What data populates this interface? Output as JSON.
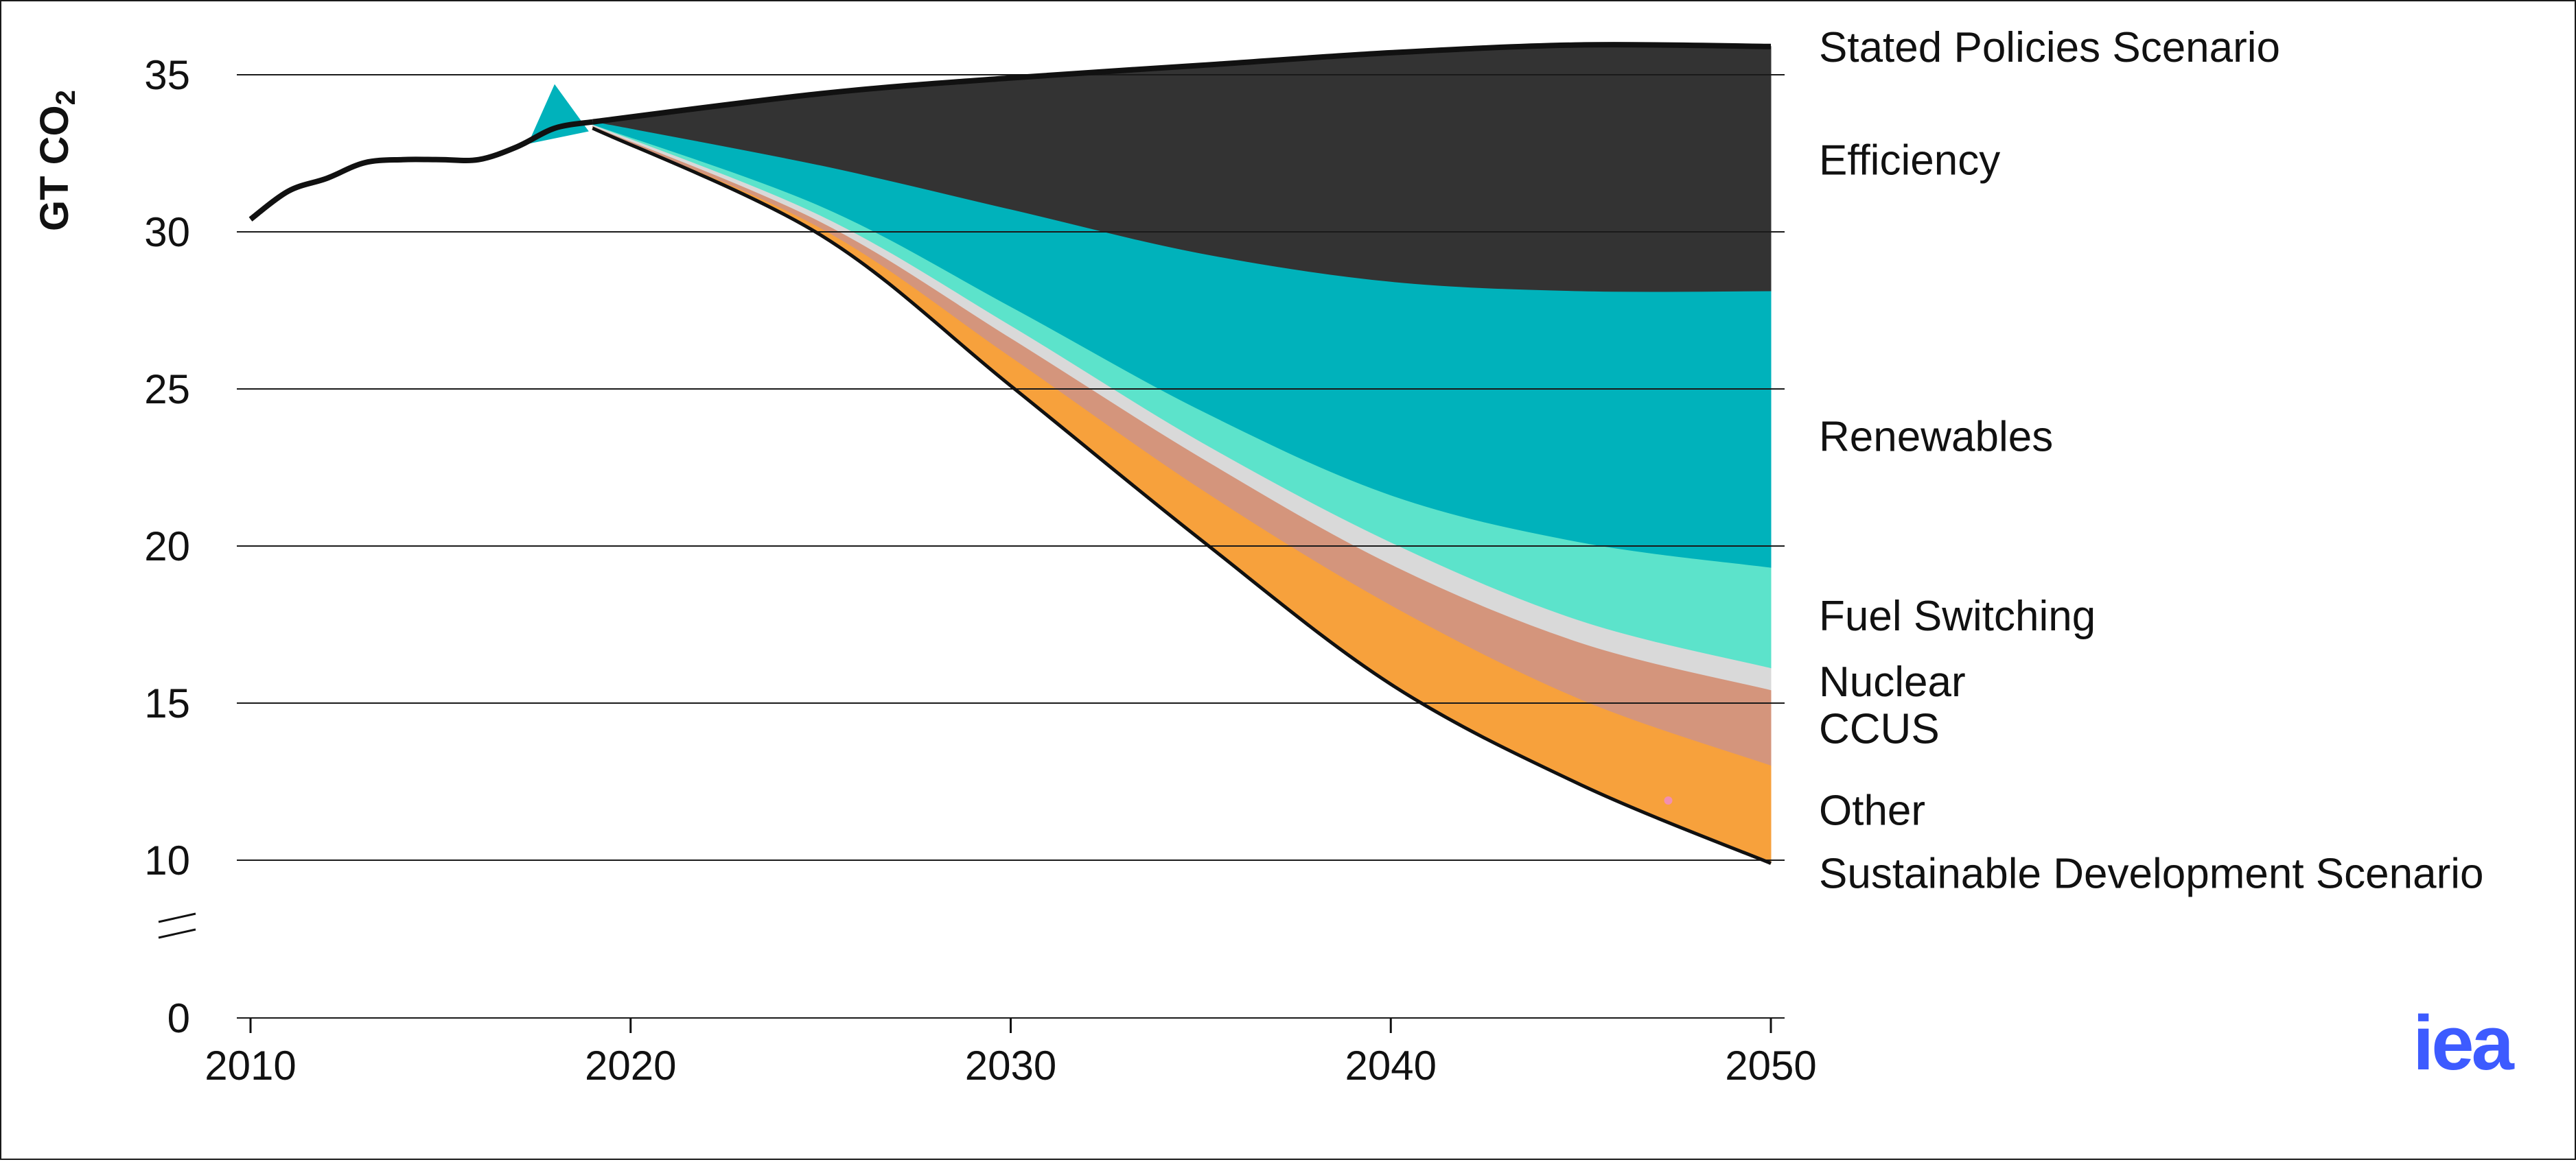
{
  "chart_data": {
    "type": "area",
    "xlabel": "",
    "ylabel": "GT CO",
    "ylabel_subscript": "2",
    "xlim": [
      2010,
      2050
    ],
    "ylim": [
      0,
      36
    ],
    "axis_break": "between 0 and 10",
    "grid": "horizontal",
    "legend": "right, labels beside bands",
    "x_ticks": [
      "2010",
      "2020",
      "2030",
      "2040",
      "2050"
    ],
    "y_ticks": [
      {
        "value": 0,
        "label": "0"
      },
      {
        "value": 10,
        "label": "10"
      },
      {
        "value": 15,
        "label": "15"
      },
      {
        "value": 20,
        "label": "20"
      },
      {
        "value": 25,
        "label": "25"
      },
      {
        "value": 30,
        "label": "30"
      },
      {
        "value": 35,
        "label": "35"
      }
    ],
    "history": {
      "x": [
        2010,
        2011,
        2012,
        2013,
        2014,
        2015,
        2016,
        2017,
        2018,
        2019
      ],
      "values": [
        30.4,
        31.3,
        31.7,
        32.2,
        32.3,
        32.3,
        32.3,
        32.7,
        33.3,
        33.5
      ]
    },
    "series": [
      {
        "name": "Stated Policies Scenario",
        "type": "line",
        "x": [
          2019,
          2025,
          2030,
          2035,
          2040,
          2045,
          2050
        ],
        "values": [
          33.5,
          34.4,
          34.9,
          35.3,
          35.7,
          35.95,
          35.9
        ]
      },
      {
        "name": "Efficiency",
        "color": "#333333",
        "x": [
          2019,
          2025,
          2030,
          2035,
          2040,
          2045,
          2050
        ],
        "lower": [
          33.5,
          32.1,
          30.7,
          29.3,
          28.4,
          28.1,
          28.1
        ]
      },
      {
        "name": "Renewables",
        "color": "#00b2bb",
        "x": [
          2019,
          2025,
          2030,
          2035,
          2040,
          2045,
          2050
        ],
        "lower": [
          33.4,
          30.8,
          27.6,
          24.3,
          21.6,
          20.1,
          19.3
        ]
      },
      {
        "name": "Fuel Switching",
        "color": "#5ce3cb",
        "x": [
          2019,
          2025,
          2030,
          2035,
          2040,
          2045,
          2050
        ],
        "lower": [
          33.4,
          30.5,
          27.0,
          23.3,
          20.1,
          17.6,
          16.1
        ]
      },
      {
        "name": "Nuclear",
        "color": "#d9d9d9",
        "x": [
          2019,
          2025,
          2030,
          2035,
          2040,
          2045,
          2050
        ],
        "lower": [
          33.35,
          30.3,
          26.6,
          22.8,
          19.4,
          16.9,
          15.4
        ]
      },
      {
        "name": "CCUS",
        "color": "#d4957c",
        "x": [
          2019,
          2025,
          2030,
          2035,
          2040,
          2045,
          2050
        ],
        "lower": [
          33.3,
          30.1,
          26.0,
          21.8,
          18.1,
          15.1,
          13.0
        ]
      },
      {
        "name": "Other",
        "color": "#f7a13c",
        "x": [
          2019,
          2025,
          2030,
          2035,
          2040,
          2045,
          2050
        ],
        "lower": [
          33.3,
          29.9,
          25.1,
          20.2,
          15.6,
          12.4,
          9.9
        ]
      },
      {
        "name": "Sustainable Development Scenario",
        "type": "line",
        "x": [
          2019,
          2025,
          2030,
          2035,
          2040,
          2045,
          2050
        ],
        "values": [
          33.3,
          29.9,
          25.1,
          20.2,
          15.6,
          12.4,
          9.9
        ]
      }
    ],
    "label_values": [
      {
        "name": "Stated Policies Scenario",
        "y": 35.9
      },
      {
        "name": "Efficiency",
        "y": 32.3
      },
      {
        "name": "Renewables",
        "y": 23.5
      },
      {
        "name": "Fuel Switching",
        "y": 17.8
      },
      {
        "name": "Nuclear",
        "y": 15.7
      },
      {
        "name": "CCUS",
        "y": 14.2
      },
      {
        "name": "Other",
        "y": 11.6
      },
      {
        "name": "Sustainable Development Scenario",
        "y": 9.6
      }
    ]
  },
  "logo_text": "iea",
  "colors": {
    "text": "#111111",
    "grid": "#1a1a1a",
    "logo": "#3d5bff"
  }
}
